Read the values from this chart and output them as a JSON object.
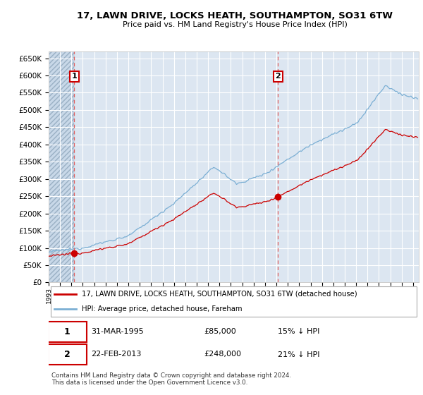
{
  "title1": "17, LAWN DRIVE, LOCKS HEATH, SOUTHAMPTON, SO31 6TW",
  "title2": "Price paid vs. HM Land Registry's House Price Index (HPI)",
  "bg_color": "#dce6f1",
  "hatch_color": "#b8c8dc",
  "grid_color": "#ffffff",
  "red_line_color": "#cc0000",
  "blue_line_color": "#7bafd4",
  "marker1_date": 1995.25,
  "marker1_value": 85000,
  "marker2_date": 2013.13,
  "marker2_value": 248000,
  "vline_color": "#e06060",
  "label_color": "#cc0000",
  "ylim": [
    0,
    670000
  ],
  "xlim_start": 1993.0,
  "xlim_end": 2025.5,
  "yticks": [
    0,
    50000,
    100000,
    150000,
    200000,
    250000,
    300000,
    350000,
    400000,
    450000,
    500000,
    550000,
    600000,
    650000
  ],
  "ytick_labels": [
    "£0",
    "£50K",
    "£100K",
    "£150K",
    "£200K",
    "£250K",
    "£300K",
    "£350K",
    "£400K",
    "£450K",
    "£500K",
    "£550K",
    "£600K",
    "£650K"
  ],
  "xticks": [
    1993,
    1994,
    1995,
    1996,
    1997,
    1998,
    1999,
    2000,
    2001,
    2002,
    2003,
    2004,
    2005,
    2006,
    2007,
    2008,
    2009,
    2010,
    2011,
    2012,
    2013,
    2014,
    2015,
    2016,
    2017,
    2018,
    2019,
    2020,
    2021,
    2022,
    2023,
    2024,
    2025
  ],
  "legend_label_red": "17, LAWN DRIVE, LOCKS HEATH, SOUTHAMPTON, SO31 6TW (detached house)",
  "legend_label_blue": "HPI: Average price, detached house, Fareham",
  "table_row1": [
    "1",
    "31-MAR-1995",
    "£85,000",
    "15% ↓ HPI"
  ],
  "table_row2": [
    "2",
    "22-FEB-2013",
    "£248,000",
    "21% ↓ HPI"
  ],
  "footer": "Contains HM Land Registry data © Crown copyright and database right 2024.\nThis data is licensed under the Open Government Licence v3.0."
}
